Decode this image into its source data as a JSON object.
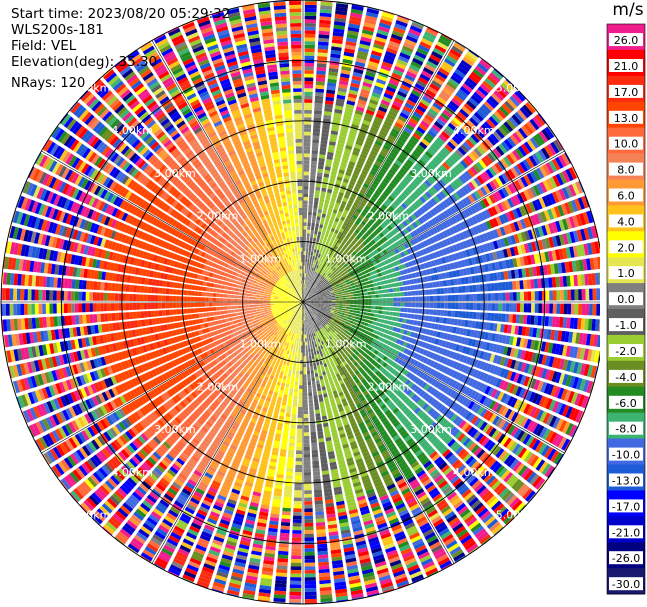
{
  "header": {
    "start_time": "Start time: 2023/08/20 05:29:32",
    "site": "WLS200s-181",
    "field": "Field: VEL",
    "elevation": "Elevation(deg): 35.30",
    "nrays": "NRays: 120"
  },
  "chart_data": {
    "type": "heatmap",
    "projection": "polar-ppi",
    "n_rays": 120,
    "max_range_km": 5.0,
    "range_rings_km": [
      1.0,
      2.0,
      3.0,
      4.0,
      5.0
    ],
    "ring_labels": [
      "1.00km",
      "2.00km",
      "3.00km",
      "4.00km",
      "5.00km"
    ],
    "spokes_deg": [
      0,
      30,
      60,
      90,
      120,
      150,
      180,
      210,
      240,
      270,
      300,
      330
    ],
    "colorbar": {
      "title": "m/s",
      "ticks": [
        "26.0",
        "21.0",
        "17.0",
        "13.0",
        "10.0",
        "8.0",
        "6.0",
        "4.0",
        "2.0",
        "1.0",
        "0.0",
        "-1.0",
        "-2.0",
        "-4.0",
        "-6.0",
        "-8.0",
        "-10.0",
        "-13.0",
        "-17.0",
        "-21.0",
        "-26.0",
        "-30.0"
      ],
      "colors": [
        "#f21d8c",
        "#ff0000",
        "#fb2b10",
        "#ff4500",
        "#ff6a3c",
        "#f58157",
        "#ff9933",
        "#ffc21a",
        "#ffff00",
        "#e6e650",
        "#7f7f7f",
        "#5e5e5e",
        "#9acd32",
        "#6b8e23",
        "#228b22",
        "#3cb371",
        "#4169e1",
        "#1e5bd6",
        "#0000ff",
        "#0000cd",
        "#000080",
        "#191970"
      ]
    },
    "velocity_pattern": {
      "description_units": "m/s",
      "positive_toward_direction_deg": 270,
      "peak_abs_velocity_at_3km": 13.0,
      "near_zero_band": "north-south axis",
      "noise_beyond_km": 3.4
    }
  }
}
